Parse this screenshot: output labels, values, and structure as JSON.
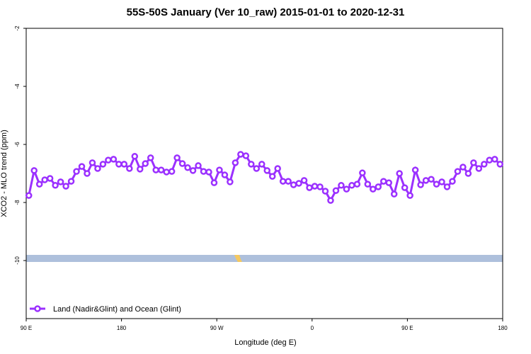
{
  "chart_data": {
    "type": "line",
    "title": "55S-50S January (Ver 10_raw)   2015-01-01 to 2020-12-31",
    "x_label": "Longitude (deg E)",
    "y_label": "XCO2 - MLO trend (ppm)",
    "xlim": [
      90,
      540
    ],
    "ylim": [
      -12,
      -2
    ],
    "xticks": [
      {
        "value": 90,
        "label": "90 E"
      },
      180,
      {
        "value": 270,
        "label": "90 W"
      },
      {
        "value": 360,
        "label": "0"
      },
      {
        "value": 450,
        "label": "90 E"
      },
      {
        "value": 540,
        "label": "180"
      }
    ],
    "yticks": [
      -2,
      -4,
      -6,
      -8,
      -10
    ],
    "legend": "lower left",
    "x": [
      92.5,
      97.5,
      102.5,
      107.5,
      112.5,
      117.5,
      122.5,
      127.5,
      132.5,
      137.5,
      142.5,
      147.5,
      152.5,
      157.5,
      162.5,
      167.5,
      172.5,
      177.5,
      182.5,
      187.5,
      192.5,
      197.5,
      202.5,
      207.5,
      212.5,
      217.5,
      222.5,
      227.5,
      232.5,
      237.5,
      242.5,
      247.5,
      252.5,
      257.5,
      262.5,
      267.5,
      272.5,
      277.5,
      282.5,
      287.5,
      292.5,
      297.5,
      302.5,
      307.5,
      312.5,
      317.5,
      322.5,
      327.5,
      332.5,
      337.5,
      342.5,
      347.5,
      352.5,
      357.5,
      362.5,
      367.5,
      372.5,
      377.5,
      382.5,
      387.5,
      392.5,
      397.5,
      402.5,
      407.5,
      412.5,
      417.5,
      422.5,
      427.5,
      432.5,
      437.5,
      442.5,
      447.5,
      452.5,
      457.5,
      462.5,
      467.5,
      472.5,
      477.5,
      482.5,
      487.5,
      492.5,
      497.5,
      502.5,
      507.5,
      512.5,
      517.5,
      522.5,
      527.5,
      532.5,
      537.5
    ],
    "series": [
      {
        "name": "Land (Nadir&Glint) and Ocean (Glint)",
        "color": "#9b30ff",
        "values": [
          -7.76,
          -6.9,
          -7.37,
          -7.22,
          -7.17,
          -7.41,
          -7.29,
          -7.44,
          -7.27,
          -6.93,
          -6.76,
          -7.0,
          -6.63,
          -6.83,
          -6.68,
          -6.54,
          -6.51,
          -6.68,
          -6.68,
          -6.83,
          -6.41,
          -6.85,
          -6.66,
          -6.46,
          -6.88,
          -6.88,
          -6.95,
          -6.93,
          -6.46,
          -6.66,
          -6.8,
          -6.9,
          -6.73,
          -6.93,
          -6.95,
          -7.32,
          -6.88,
          -7.05,
          -7.29,
          -6.63,
          -6.34,
          -6.39,
          -6.68,
          -6.83,
          -6.68,
          -6.9,
          -7.1,
          -6.83,
          -7.27,
          -7.27,
          -7.39,
          -7.34,
          -7.24,
          -7.49,
          -7.44,
          -7.46,
          -7.61,
          -7.93,
          -7.59,
          -7.41,
          -7.54,
          -7.41,
          -7.37,
          -6.98,
          -7.37,
          -7.54,
          -7.46,
          -7.27,
          -7.32,
          -7.71,
          -7.0,
          -7.49,
          -7.76,
          -6.88,
          -7.39,
          -7.24,
          -7.2,
          -7.37,
          -7.29,
          -7.46,
          -7.27,
          -6.93,
          -6.78,
          -7.0,
          -6.63,
          -6.83,
          -6.68,
          -6.54,
          -6.51,
          -6.68
        ]
      }
    ]
  }
}
